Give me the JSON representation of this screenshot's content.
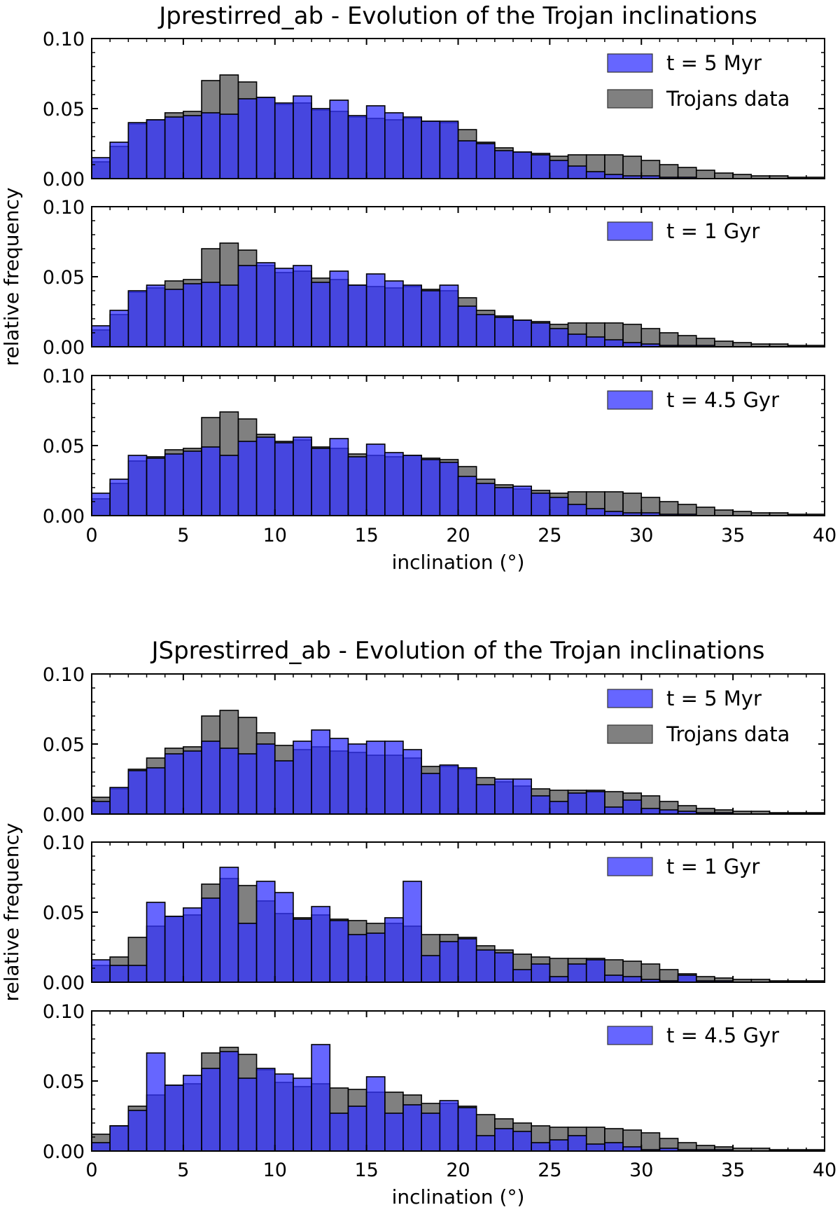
{
  "colors": {
    "model": "#3333ff",
    "trojans": "#555555",
    "edge": "#000000"
  },
  "chart_data": [
    {
      "type": "bar",
      "title": "Jprestirred_ab - Evolution of the Trojan inclinations",
      "xlabel": "inclination (°)",
      "ylabel": "relative frequency",
      "xlim": [
        0,
        40
      ],
      "ylim": [
        0,
        0.1
      ],
      "xticks": [
        "0",
        "5",
        "10",
        "15",
        "20",
        "25",
        "30",
        "35",
        "40"
      ],
      "yticks": [
        "0.00",
        "0.05",
        "0.10"
      ],
      "bin_width": 1,
      "trojans_data": [
        0.012,
        0.023,
        0.039,
        0.042,
        0.047,
        0.048,
        0.07,
        0.074,
        0.069,
        0.058,
        0.053,
        0.054,
        0.049,
        0.048,
        0.044,
        0.043,
        0.042,
        0.043,
        0.041,
        0.04,
        0.035,
        0.026,
        0.022,
        0.019,
        0.018,
        0.016,
        0.017,
        0.017,
        0.017,
        0.016,
        0.013,
        0.01,
        0.008,
        0.006,
        0.004,
        0.003,
        0.002,
        0.002,
        0.001,
        0.001
      ],
      "panels": [
        {
          "legend": [
            "t = 5 Myr",
            "Trojans data"
          ],
          "values": [
            0.015,
            0.026,
            0.04,
            0.042,
            0.044,
            0.045,
            0.047,
            0.046,
            0.057,
            0.058,
            0.054,
            0.059,
            0.05,
            0.056,
            0.045,
            0.052,
            0.047,
            0.044,
            0.041,
            0.041,
            0.027,
            0.025,
            0.02,
            0.019,
            0.017,
            0.013,
            0.009,
            0.005,
            0.003,
            0.002,
            0.002,
            0.001,
            0.001,
            0.0,
            0.0,
            0.0,
            0.0,
            0.0,
            0.0,
            0.0
          ]
        },
        {
          "legend": [
            "t = 1 Gyr"
          ],
          "values": [
            0.015,
            0.026,
            0.04,
            0.044,
            0.041,
            0.045,
            0.046,
            0.044,
            0.058,
            0.06,
            0.056,
            0.058,
            0.046,
            0.054,
            0.044,
            0.052,
            0.047,
            0.044,
            0.04,
            0.044,
            0.029,
            0.023,
            0.021,
            0.019,
            0.017,
            0.013,
            0.009,
            0.007,
            0.005,
            0.003,
            0.002,
            0.001,
            0.001,
            0.001,
            0.0,
            0.0,
            0.0,
            0.0,
            0.0,
            0.0
          ]
        },
        {
          "legend": [
            "t = 4.5 Gyr"
          ],
          "values": [
            0.016,
            0.026,
            0.043,
            0.041,
            0.044,
            0.046,
            0.049,
            0.043,
            0.053,
            0.056,
            0.052,
            0.056,
            0.048,
            0.055,
            0.042,
            0.051,
            0.045,
            0.043,
            0.04,
            0.038,
            0.028,
            0.023,
            0.02,
            0.021,
            0.016,
            0.013,
            0.008,
            0.005,
            0.003,
            0.002,
            0.002,
            0.001,
            0.001,
            0.0,
            0.0,
            0.0,
            0.0,
            0.0,
            0.0,
            0.0
          ]
        }
      ]
    },
    {
      "type": "bar",
      "title": "JSprestirred_ab - Evolution of the Trojan inclinations",
      "xlabel": "inclination (°)",
      "ylabel": "relative frequency",
      "xlim": [
        0,
        40
      ],
      "ylim": [
        0,
        0.1
      ],
      "xticks": [
        "0",
        "5",
        "10",
        "15",
        "20",
        "25",
        "30",
        "35",
        "40"
      ],
      "yticks": [
        "0.00",
        "0.05",
        "0.10"
      ],
      "bin_width": 1,
      "trojans_data": [
        0.012,
        0.018,
        0.032,
        0.04,
        0.047,
        0.048,
        0.07,
        0.074,
        0.069,
        0.058,
        0.049,
        0.046,
        0.048,
        0.045,
        0.044,
        0.042,
        0.042,
        0.04,
        0.034,
        0.034,
        0.032,
        0.026,
        0.023,
        0.02,
        0.018,
        0.017,
        0.017,
        0.017,
        0.016,
        0.015,
        0.013,
        0.009,
        0.006,
        0.004,
        0.003,
        0.002,
        0.002,
        0.001,
        0.001,
        0.001
      ],
      "panels": [
        {
          "legend": [
            "t = 5 Myr",
            "Trojans data"
          ],
          "values": [
            0.009,
            0.019,
            0.031,
            0.033,
            0.043,
            0.045,
            0.052,
            0.047,
            0.043,
            0.05,
            0.038,
            0.052,
            0.06,
            0.054,
            0.05,
            0.052,
            0.052,
            0.046,
            0.029,
            0.035,
            0.033,
            0.021,
            0.025,
            0.025,
            0.013,
            0.009,
            0.015,
            0.016,
            0.005,
            0.01,
            0.004,
            0.003,
            0.002,
            0.001,
            0.001,
            0.0,
            0.0,
            0.0,
            0.0,
            0.0
          ]
        },
        {
          "legend": [
            "t = 1 Gyr"
          ],
          "values": [
            0.016,
            0.012,
            0.012,
            0.057,
            0.047,
            0.053,
            0.06,
            0.082,
            0.042,
            0.072,
            0.064,
            0.045,
            0.054,
            0.044,
            0.034,
            0.035,
            0.046,
            0.072,
            0.019,
            0.029,
            0.031,
            0.023,
            0.021,
            0.009,
            0.013,
            0.004,
            0.013,
            0.016,
            0.005,
            0.004,
            0.002,
            0.001,
            0.005,
            0.001,
            0.001,
            0.0,
            0.0,
            0.0,
            0.0,
            0.0
          ]
        },
        {
          "legend": [
            "t = 4.5 Gyr"
          ],
          "values": [
            0.006,
            0.018,
            0.029,
            0.07,
            0.047,
            0.054,
            0.059,
            0.071,
            0.052,
            0.059,
            0.055,
            0.052,
            0.076,
            0.027,
            0.032,
            0.053,
            0.027,
            0.033,
            0.027,
            0.036,
            0.031,
            0.011,
            0.016,
            0.014,
            0.006,
            0.008,
            0.011,
            0.005,
            0.006,
            0.003,
            0.001,
            0.002,
            0.001,
            0.001,
            0.001,
            0.0,
            0.0,
            0.0,
            0.0,
            0.0
          ]
        }
      ]
    }
  ]
}
